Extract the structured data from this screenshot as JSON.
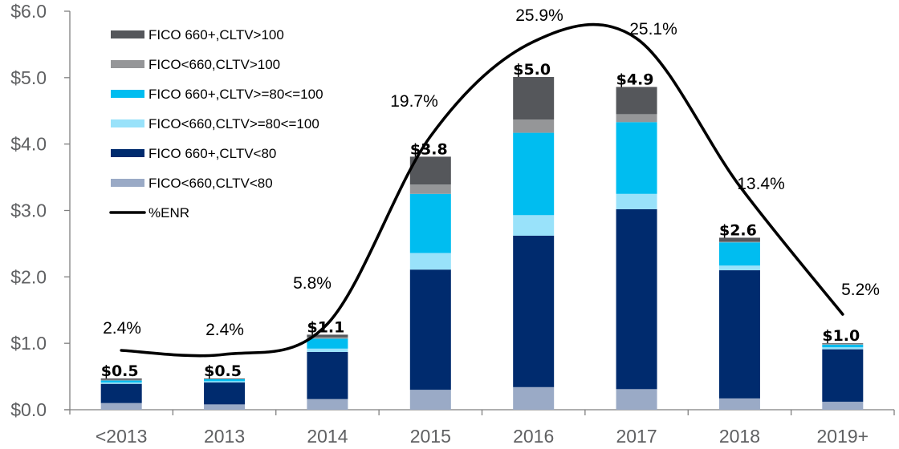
{
  "chart_data": {
    "type": "bar",
    "subtype": "stacked-bar-with-line",
    "title": "",
    "xlabel": "",
    "ylabel": "",
    "ylim": [
      0,
      6
    ],
    "yticks": [
      "$0.0",
      "$1.0",
      "$2.0",
      "$3.0",
      "$4.0",
      "$5.0",
      "$6.0"
    ],
    "ytick_values": [
      0,
      1,
      2,
      3,
      4,
      5,
      6
    ],
    "grid": false,
    "legend_position": "top-left",
    "categories": [
      "<2013",
      "2013",
      "2014",
      "2015",
      "2016",
      "2017",
      "2018",
      "2019+"
    ],
    "series": [
      {
        "name": "FICO<660,CLTV<80",
        "color": "#9aaac6",
        "values": [
          0.1,
          0.08,
          0.16,
          0.3,
          0.34,
          0.31,
          0.17,
          0.12
        ]
      },
      {
        "name": "FICO 660+,CLTV<80",
        "color": "#002b6e",
        "values": [
          0.29,
          0.33,
          0.71,
          1.81,
          2.28,
          2.71,
          1.93,
          0.79
        ]
      },
      {
        "name": "FICO<660,CLTV>=80<=100",
        "color": "#99e2fa",
        "values": [
          0.02,
          0.02,
          0.05,
          0.25,
          0.31,
          0.23,
          0.07,
          0.03
        ]
      },
      {
        "name": "FICO 660+,CLTV>=80<=100",
        "color": "#00bdf0",
        "values": [
          0.03,
          0.03,
          0.15,
          0.89,
          1.24,
          1.08,
          0.35,
          0.04
        ]
      },
      {
        "name": "FICO<660,CLTV>100",
        "color": "#959698",
        "values": [
          0.01,
          0.0,
          0.02,
          0.14,
          0.2,
          0.12,
          0.01,
          0.01
        ]
      },
      {
        "name": "FICO 660+,CLTV>100",
        "color": "#55575b",
        "values": [
          0.02,
          0.01,
          0.04,
          0.42,
          0.64,
          0.41,
          0.06,
          0.01
        ]
      }
    ],
    "totals": [
      "$0.5",
      "$0.5",
      "$1.1",
      "$3.8",
      "$5.0",
      "$4.9",
      "$2.6",
      "$1.0"
    ],
    "line_series": {
      "name": "%ENR",
      "color": "#000000",
      "values": [
        2.4,
        2.4,
        5.8,
        19.7,
        25.9,
        25.1,
        13.4,
        5.2
      ],
      "labels": [
        "2.4%",
        "2.4%",
        "5.8%",
        "19.7%",
        "25.9%",
        "25.1%",
        "13.4%",
        "5.2%"
      ]
    },
    "legend": [
      {
        "label": "FICO 660+,CLTV>100",
        "color": "#55575b",
        "kind": "bar"
      },
      {
        "label": "FICO<660,CLTV>100",
        "color": "#959698",
        "kind": "bar"
      },
      {
        "label": "FICO 660+,CLTV>=80<=100",
        "color": "#00bdf0",
        "kind": "bar"
      },
      {
        "label": "FICO<660,CLTV>=80<=100",
        "color": "#99e2fa",
        "kind": "bar"
      },
      {
        "label": "FICO 660+,CLTV<80",
        "color": "#002b6e",
        "kind": "bar"
      },
      {
        "label": "FICO<660,CLTV<80",
        "color": "#9aaac6",
        "kind": "bar"
      },
      {
        "label": "%ENR",
        "color": "#000000",
        "kind": "line"
      }
    ]
  }
}
